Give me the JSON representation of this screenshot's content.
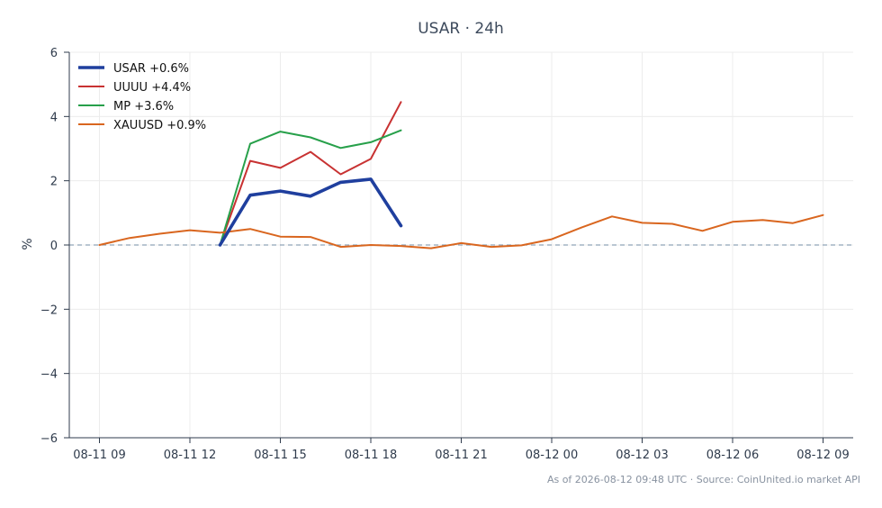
{
  "footer": "As of 2026-08-12 09:48 UTC · Source: CoinUnited.io market API",
  "chart_data": {
    "type": "line",
    "title": "USAR · 24h",
    "xlabel": "",
    "ylabel": "%",
    "ylim": [
      -6,
      6
    ],
    "yticks": [
      6,
      4,
      2,
      0,
      -2,
      -4,
      -6
    ],
    "ytick_labels": [
      "6",
      "4",
      "2",
      "0",
      "−2",
      "−4",
      "−6"
    ],
    "x_range": [
      "08-11 08:00",
      "08-12 10:00"
    ],
    "xticks": [
      "08-11 09:00",
      "08-11 12:00",
      "08-11 15:00",
      "08-11 18:00",
      "08-11 21:00",
      "08-12 00:00",
      "08-12 03:00",
      "08-12 06:00",
      "08-12 09:00"
    ],
    "xtick_labels": [
      "08-11 09",
      "08-11 12",
      "08-11 15",
      "08-11 18",
      "08-11 21",
      "08-12 00",
      "08-12 03",
      "08-12 06",
      "08-12 09"
    ],
    "grid": true,
    "zero_line": "dashed",
    "legend": "top-left",
    "series": [
      {
        "name": "USAR +0.6%",
        "color": "#1f3f9e",
        "emphasis": "thick",
        "points": [
          [
            "08-11 13:00",
            0
          ],
          [
            "08-11 14:00",
            1.55
          ],
          [
            "08-11 15:00",
            1.68
          ],
          [
            "08-11 16:00",
            1.52
          ],
          [
            "08-11 17:00",
            1.95
          ],
          [
            "08-11 18:00",
            2.05
          ],
          [
            "08-11 19:00",
            0.6
          ]
        ]
      },
      {
        "name": "UUUU +4.4%",
        "color": "#c83232",
        "points": [
          [
            "08-11 13:00",
            0
          ],
          [
            "08-11 14:00",
            2.62
          ],
          [
            "08-11 15:00",
            2.4
          ],
          [
            "08-11 16:00",
            2.9
          ],
          [
            "08-11 17:00",
            2.2
          ],
          [
            "08-11 18:00",
            2.68
          ],
          [
            "08-11 19:00",
            4.45
          ]
        ]
      },
      {
        "name": "MP +3.6%",
        "color": "#27a04a",
        "points": [
          [
            "08-11 13:00",
            0
          ],
          [
            "08-11 14:00",
            3.15
          ],
          [
            "08-11 15:00",
            3.53
          ],
          [
            "08-11 16:00",
            3.35
          ],
          [
            "08-11 17:00",
            3.02
          ],
          [
            "08-11 18:00",
            3.2
          ],
          [
            "08-11 19:00",
            3.57
          ]
        ]
      },
      {
        "name": "XAUUSD +0.9%",
        "color": "#d9661f",
        "points": [
          [
            "08-11 09:00",
            0
          ],
          [
            "08-11 10:00",
            0.22
          ],
          [
            "08-11 11:00",
            0.35
          ],
          [
            "08-11 12:00",
            0.46
          ],
          [
            "08-11 13:00",
            0.38
          ],
          [
            "08-11 14:00",
            0.5
          ],
          [
            "08-11 15:00",
            0.26
          ],
          [
            "08-11 16:00",
            0.25
          ],
          [
            "08-11 17:00",
            -0.06
          ],
          [
            "08-11 18:00",
            0.0
          ],
          [
            "08-11 19:00",
            -0.03
          ],
          [
            "08-11 20:00",
            -0.1
          ],
          [
            "08-11 21:00",
            0.06
          ],
          [
            "08-11 22:00",
            -0.06
          ],
          [
            "08-11 23:00",
            -0.01
          ],
          [
            "08-12 00:00",
            0.18
          ],
          [
            "08-12 01:00",
            0.55
          ],
          [
            "08-12 02:00",
            0.89
          ],
          [
            "08-12 03:00",
            0.69
          ],
          [
            "08-12 04:00",
            0.66
          ],
          [
            "08-12 05:00",
            0.44
          ],
          [
            "08-12 06:00",
            0.72
          ],
          [
            "08-12 07:00",
            0.78
          ],
          [
            "08-12 08:00",
            0.68
          ],
          [
            "08-12 09:00",
            0.93
          ]
        ]
      }
    ]
  }
}
